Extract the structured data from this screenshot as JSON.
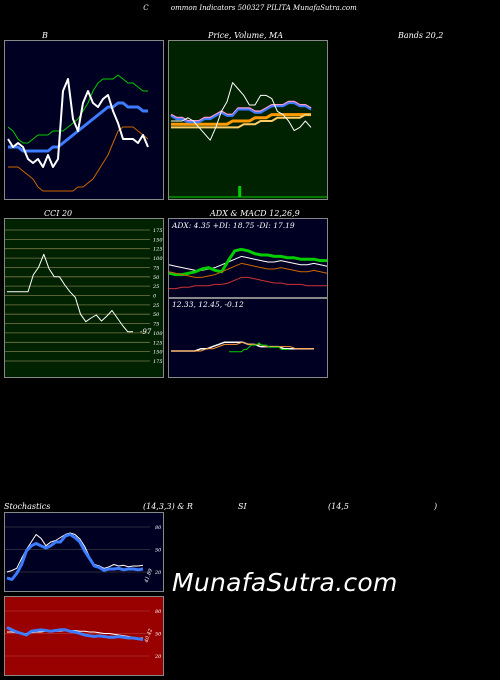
{
  "header": {
    "title": "Common  Indicators 500327 PILITA MunafaSutra.com",
    "title_c": "C",
    "title_rest": "ommon  Indicators 500327 PILITA MunafaSutra.com"
  },
  "labels": {
    "bands_b": "B",
    "bands_right": "Bands 20,2",
    "price_title": "Price, Volume, MA",
    "price_overlap": "Price, Volume",
    "cci_title": "CCI 20",
    "adx_title": "ADX  & MACD 12,26,9",
    "adx_values": "ADX: 4.35  +DI: 18.75 -DI: 17.19",
    "macd_values": "12.33,  12.45,  -0.12",
    "stoch_left": "Stochastics",
    "stoch_mid": "(14,3,3) & R",
    "rsi_mid": "SI",
    "rsi_params": "(14,5",
    "rsi_close": ")",
    "cci_last": "-97",
    "stoch_last": "41.89",
    "rsi_last": "40.42"
  },
  "watermark": "MunafaSutra.com",
  "colors": {
    "bb_bg": "#000022",
    "price_bg": "#002200",
    "cci_bg": "#002200",
    "adx_bg": "#000022",
    "stoch_bg": "#000022",
    "rsi_bg": "#990000",
    "blue_line": "#3d7bff",
    "green_line": "#00cc00",
    "orange_line": "#cc6600",
    "grid": "#777744"
  },
  "chart_data": [
    {
      "type": "line",
      "name_panel": "Bollinger Bands",
      "series": [
        {
          "name": "",
          "values": [
            16,
            15,
            13,
            12,
            12,
            13,
            14,
            14,
            14,
            15,
            15,
            15,
            16,
            17,
            18,
            20,
            22,
            25,
            27,
            28,
            28,
            28,
            29,
            28,
            27,
            27,
            26,
            25,
            25
          ]
        },
        {
          "name": "",
          "values": [
            11,
            11,
            11,
            10,
            10,
            10,
            10,
            10,
            10,
            11,
            11,
            12,
            13,
            14,
            15,
            16,
            17,
            18,
            19,
            20,
            21,
            21,
            22,
            22,
            21,
            21,
            21,
            20,
            20
          ]
        },
        {
          "name": "",
          "values": [
            6,
            6,
            6,
            5,
            4,
            3,
            1,
            0,
            0,
            0,
            0,
            0,
            0,
            0,
            1,
            1,
            2,
            3,
            5,
            7,
            9,
            12,
            15,
            16,
            16,
            16,
            15,
            14,
            13
          ]
        },
        {
          "name": "",
          "values": [
            13,
            11,
            12,
            11,
            8,
            7,
            8,
            6,
            9,
            6,
            8,
            25,
            28,
            18,
            15,
            22,
            25,
            22,
            21,
            23,
            24,
            20,
            17,
            13,
            13,
            13,
            12,
            14,
            11
          ]
        }
      ]
    },
    {
      "type": "line",
      "name_panel": "Price Volume MA",
      "series": [
        {
          "name": "",
          "values": [
            12,
            11,
            11,
            10,
            10,
            10,
            11,
            11,
            12,
            13,
            12,
            12,
            14,
            14,
            14,
            13,
            13,
            14,
            15,
            15,
            15,
            16,
            16,
            15,
            15,
            14
          ]
        },
        {
          "name": "",
          "values": [
            10,
            10,
            10,
            11,
            10,
            8,
            6,
            4,
            8,
            13,
            16,
            22,
            20,
            18,
            15,
            15,
            18,
            18,
            17,
            13,
            12,
            10,
            7,
            8,
            10,
            8
          ]
        },
        {
          "name": "",
          "values": [
            9,
            9,
            9,
            9,
            9,
            9,
            9,
            9,
            9,
            9,
            9,
            10,
            10,
            10,
            10,
            11,
            11,
            11,
            12,
            12,
            12,
            12,
            12,
            12,
            12,
            12
          ]
        },
        {
          "name": "",
          "values": [
            8,
            8,
            8,
            8,
            8,
            8,
            8,
            8,
            8,
            8,
            8,
            8,
            8,
            9,
            9,
            9,
            10,
            10,
            10,
            11,
            11,
            11,
            11,
            11,
            12,
            12
          ]
        }
      ],
      "volume": [
        0,
        0,
        0,
        0,
        0,
        0,
        0,
        0,
        0,
        0,
        0,
        0,
        1,
        0,
        0,
        0,
        0,
        0,
        0,
        0,
        0,
        0,
        0,
        0,
        0,
        0
      ]
    },
    {
      "type": "line",
      "name_panel": "CCI",
      "ylim": [
        -175,
        175
      ],
      "ticks": [
        175,
        150,
        125,
        100,
        75,
        50,
        25,
        0,
        -25,
        -50,
        -75,
        -100,
        -125,
        -150,
        -175
      ],
      "tick_labels": [
        "175",
        "150",
        "125",
        "100",
        "75",
        "50",
        "25",
        "0",
        "25",
        "50",
        "75",
        "100",
        "125",
        "150",
        "175"
      ],
      "values": [
        10,
        10,
        10,
        10,
        10,
        55,
        75,
        110,
        72,
        50,
        50,
        28,
        10,
        -5,
        -50,
        -70,
        -60,
        -52,
        -68,
        -55,
        -40,
        -60,
        -80,
        -97,
        -97
      ]
    },
    {
      "type": "line",
      "name_panel": "ADX",
      "series": [
        {
          "name": "",
          "values": [
            18,
            17,
            16,
            15,
            14,
            14,
            15,
            16,
            18,
            20,
            22,
            24,
            23,
            22,
            21,
            20,
            20,
            21,
            20,
            19,
            18,
            18,
            19,
            18,
            17
          ]
        },
        {
          "name": "",
          "values": [
            17,
            16,
            16,
            17,
            18,
            20,
            21,
            19,
            18,
            26,
            33,
            34,
            33,
            31,
            30,
            30,
            29,
            29,
            28,
            28,
            27,
            27,
            27,
            26,
            26
          ]
        },
        {
          "name": "",
          "values": [
            6,
            6,
            7,
            7,
            8,
            8,
            8,
            9,
            9,
            10,
            12,
            14,
            14,
            13,
            12,
            11,
            10,
            10,
            9,
            9,
            9,
            8,
            8,
            8,
            8
          ]
        }
      ]
    },
    {
      "type": "line",
      "name_panel": "MACD",
      "series": [
        {
          "name": "",
          "values": [
            11,
            11,
            11,
            11,
            11,
            12,
            12,
            13,
            14,
            15,
            15,
            15,
            15,
            14,
            14,
            13,
            13,
            13,
            13,
            12,
            12,
            12,
            12,
            12,
            12
          ]
        },
        {
          "name": "",
          "values": [
            11,
            11,
            11,
            11,
            11,
            11,
            12,
            12,
            13,
            14,
            14,
            14,
            15,
            14,
            14,
            14,
            13,
            13,
            13,
            13,
            13,
            12,
            12,
            12,
            12
          ]
        }
      ]
    },
    {
      "type": "line",
      "name_panel": "Stochastics",
      "ticks": [
        80,
        50,
        20
      ],
      "series": [
        {
          "name": "",
          "values": [
            20,
            22,
            25,
            38,
            50,
            60,
            70,
            65,
            55,
            60,
            62,
            66,
            70,
            72,
            70,
            64,
            54,
            40,
            30,
            28,
            25,
            27,
            30,
            28,
            29,
            27,
            28,
            28,
            29
          ]
        },
        {
          "name": "",
          "values": [
            12,
            10,
            18,
            30,
            48,
            55,
            58,
            55,
            52,
            55,
            60,
            60,
            68,
            70,
            66,
            60,
            48,
            38,
            28,
            26,
            22,
            24,
            24,
            25,
            23,
            24,
            24,
            23,
            24
          ]
        }
      ]
    },
    {
      "type": "line",
      "name_panel": "RSI",
      "ticks": [
        80,
        50,
        20
      ],
      "series": [
        {
          "name": "",
          "values": [
            58,
            55,
            52,
            50,
            48,
            53,
            54,
            55,
            54,
            53,
            54,
            55,
            55,
            53,
            52,
            50,
            48,
            47,
            46,
            47,
            46,
            45,
            45,
            46,
            45,
            44,
            44,
            43,
            42
          ]
        },
        {
          "name": "",
          "values": [
            52,
            52,
            51,
            50,
            50,
            51,
            52,
            52,
            53,
            53,
            53,
            53,
            54,
            54,
            54,
            53,
            53,
            52,
            52,
            51,
            50,
            50,
            49,
            48,
            47,
            46,
            45,
            44,
            44
          ]
        }
      ]
    }
  ]
}
